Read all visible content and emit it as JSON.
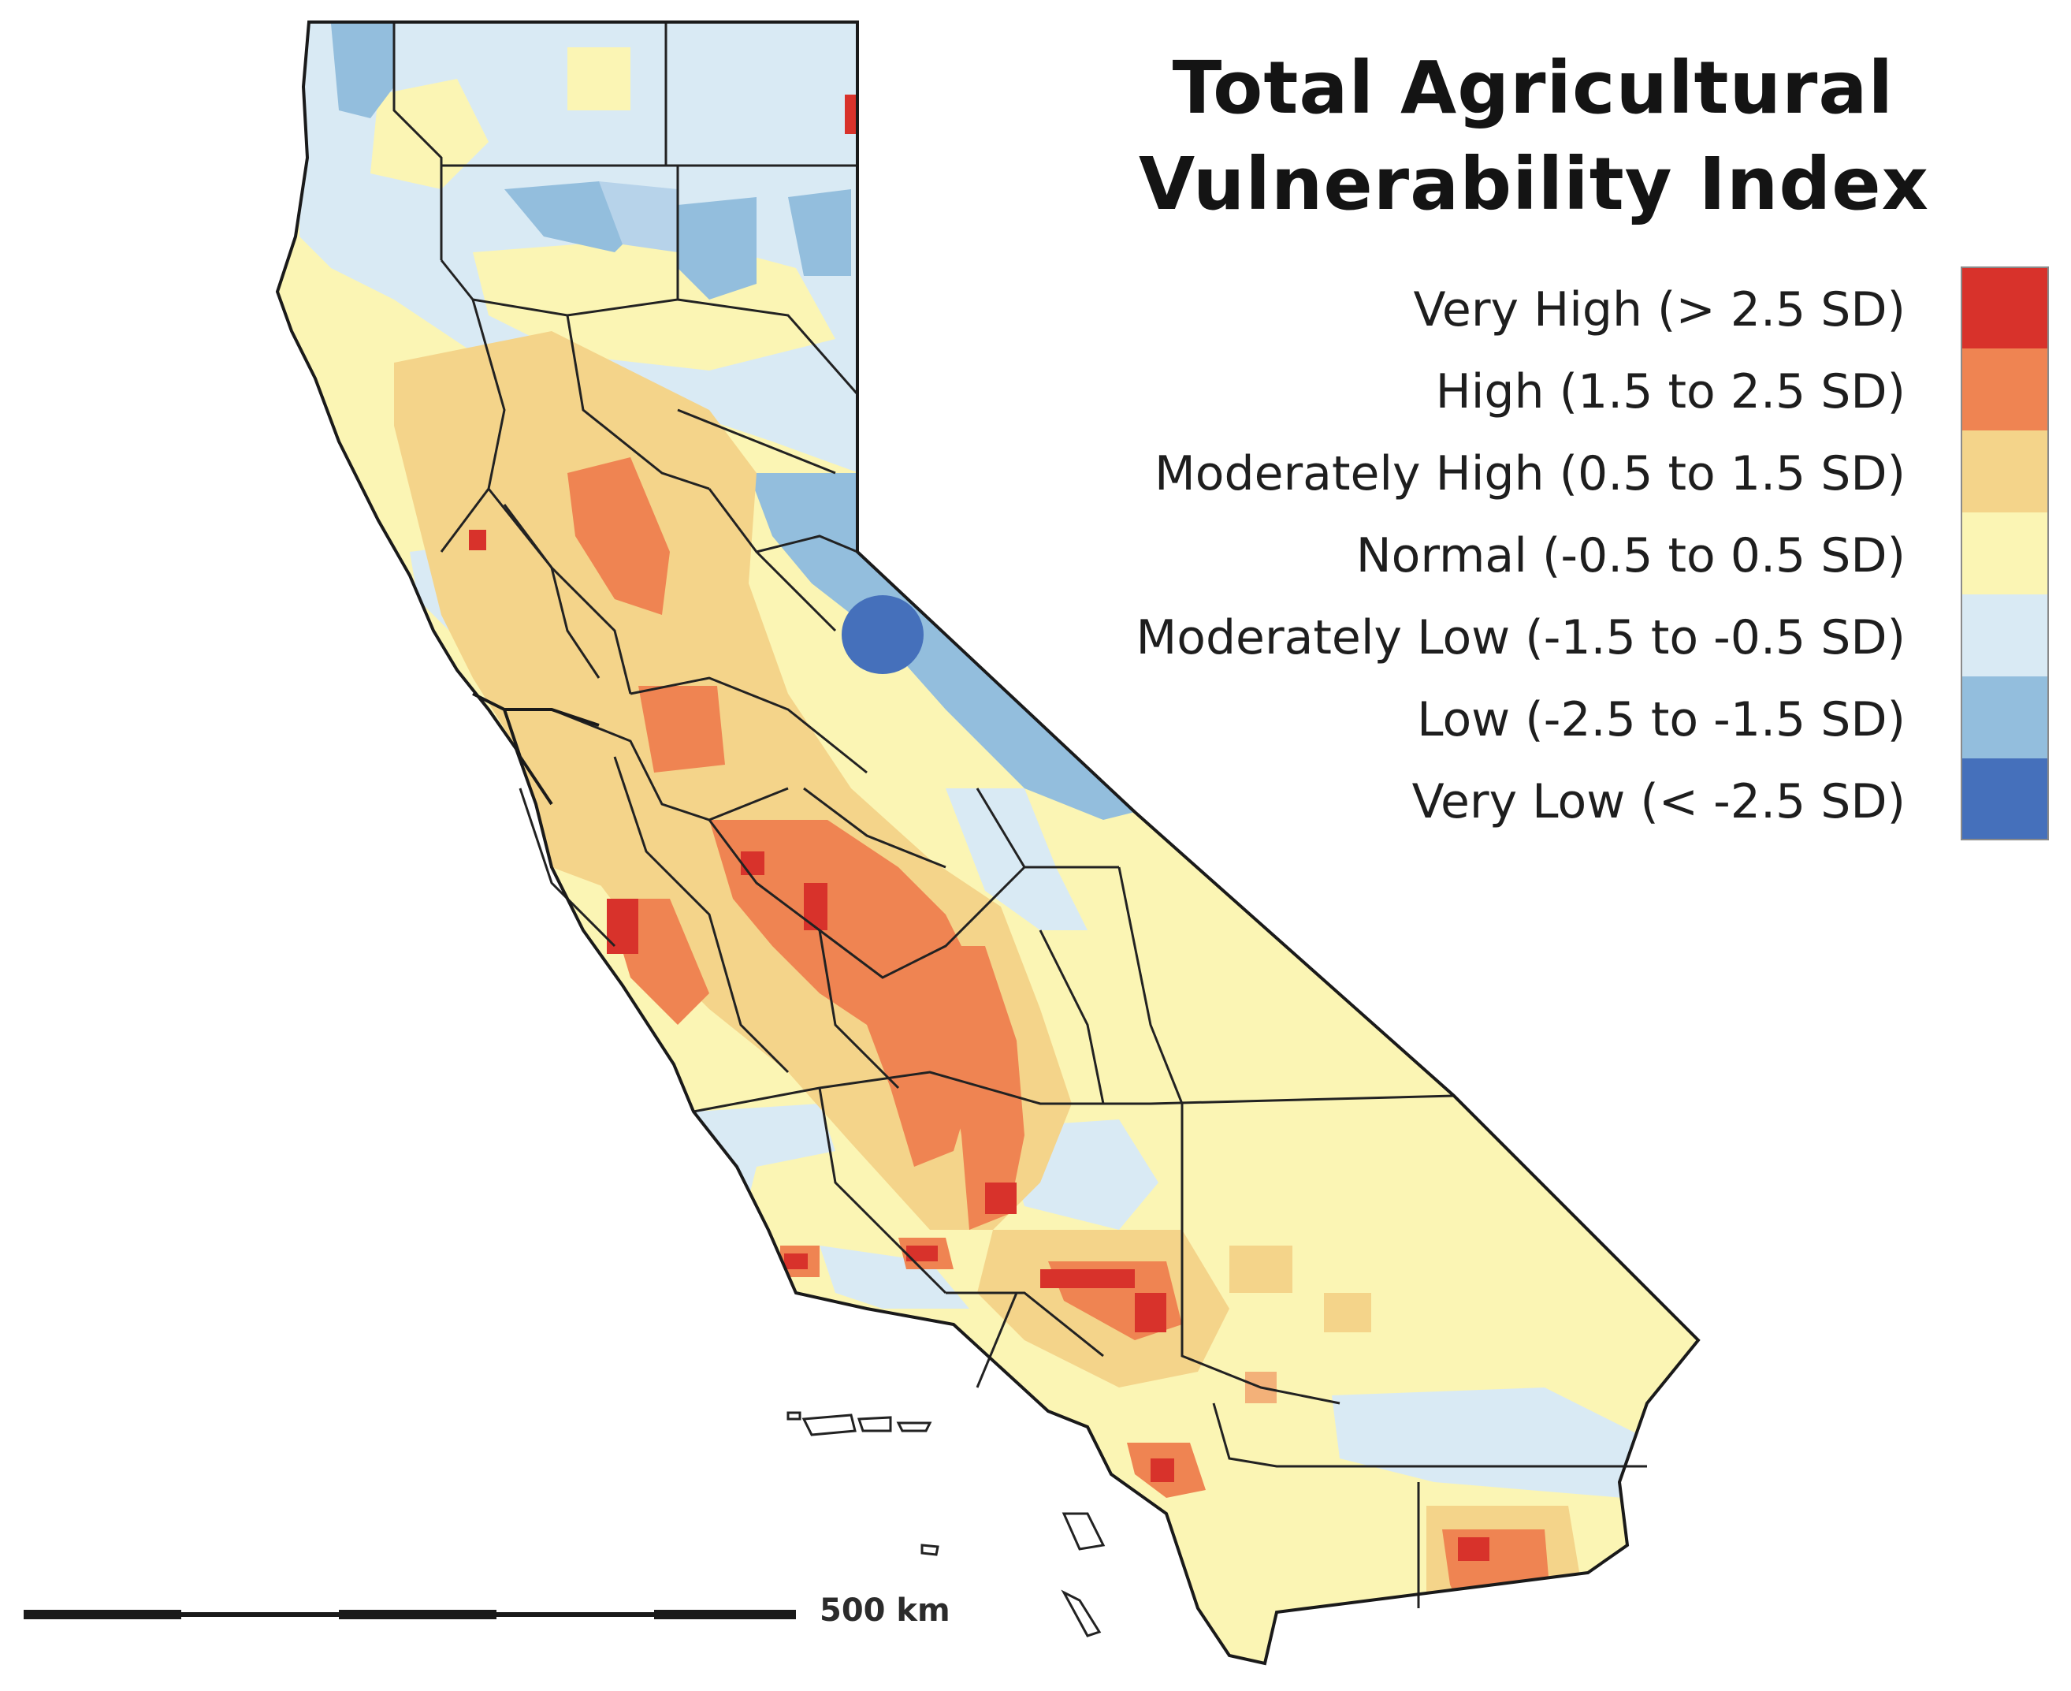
{
  "title": {
    "line1": "Total Agricultural",
    "line2": "Vulnerability Index"
  },
  "legend": {
    "items": [
      {
        "label": "Very High (> 2.5 SD)",
        "color": "#d8322b"
      },
      {
        "label": "High (1.5 to 2.5 SD)",
        "color": "#ef8452"
      },
      {
        "label": "Moderately High (0.5 to 1.5 SD)",
        "color": "#f4d48a"
      },
      {
        "label": "Normal (-0.5 to 0.5 SD)",
        "color": "#fbf5b4"
      },
      {
        "label": "Moderately Low (-1.5 to -0.5 SD)",
        "color": "#d9eaf4"
      },
      {
        "label": "Low (-2.5 to -1.5 SD)",
        "color": "#93bedd"
      },
      {
        "label": "Very Low (< -2.5 SD)",
        "color": "#4570bb"
      }
    ]
  },
  "scale_bar": {
    "label": "500 km"
  },
  "map": {
    "region": "California",
    "boundary_color": "#222222"
  }
}
